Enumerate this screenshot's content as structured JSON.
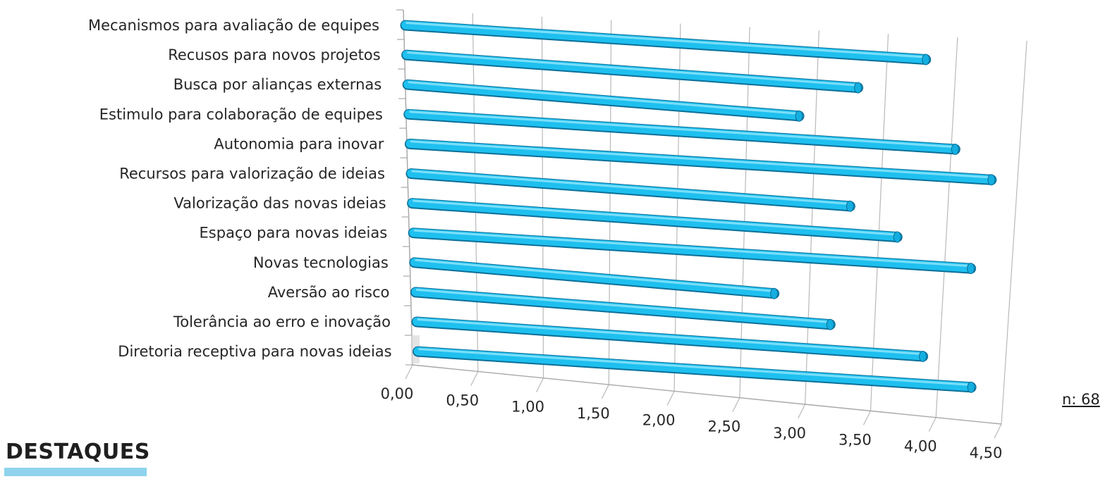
{
  "chart_data": {
    "type": "bar",
    "orientation": "horizontal",
    "style": "3d-cylinder",
    "categories": [
      "Mecanismos para avaliação de equipes",
      "Recusos para novos projetos",
      "Busca por alianças externas",
      "Estimulo para colaboração de equipes",
      "Autonomia para inovar",
      "Recursos para valorização de ideias",
      "Valorização das novas ideias",
      "Espaço para novas ideias",
      "Novas tecnologias",
      "Aversão ao risco",
      "Tolerância ao erro e inovação",
      "Diretoria receptiva para novas ideias"
    ],
    "values": [
      3.72,
      3.24,
      2.82,
      3.97,
      4.25,
      3.22,
      3.58,
      4.14,
      2.68,
      3.11,
      3.82,
      4.2
    ],
    "x_ticks": [
      "0,00",
      "0,50",
      "1,00",
      "1,50",
      "2,00",
      "2,50",
      "3,00",
      "3,50",
      "4,00",
      "4,50"
    ],
    "xlim": [
      0,
      4.5
    ],
    "grid": true,
    "bar_color": "#1ec0ef"
  },
  "footnote": "n: 68",
  "section_title": "DESTAQUES"
}
